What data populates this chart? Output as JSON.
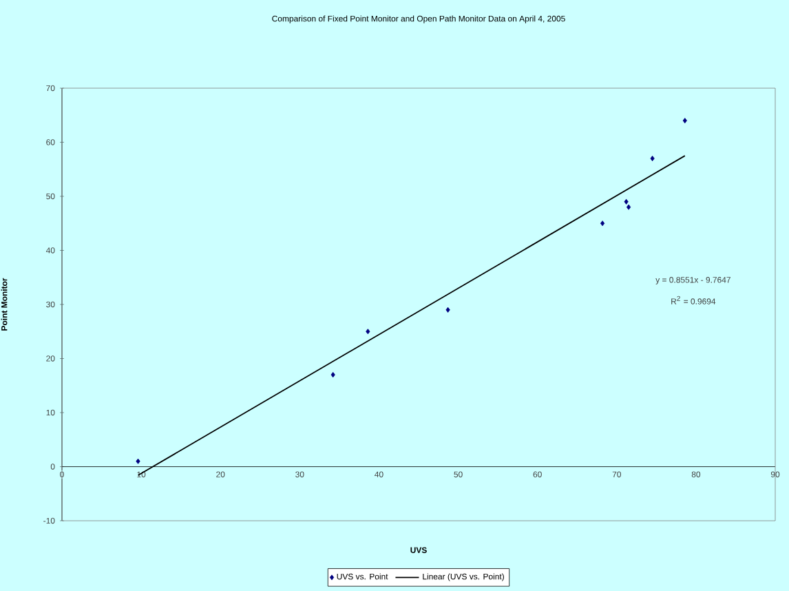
{
  "chart_data": {
    "type": "scatter",
    "title": "Comparison of Fixed Point Monitor and Open Path Monitor Data on April 4, 2005",
    "xlabel": "UVS",
    "ylabel": "Point Monitor",
    "xlim": [
      0,
      90
    ],
    "ylim": [
      -10,
      70
    ],
    "xticks": [
      0,
      10,
      20,
      30,
      40,
      50,
      60,
      70,
      80,
      90
    ],
    "yticks": [
      -10,
      0,
      10,
      20,
      30,
      40,
      50,
      60,
      70
    ],
    "legend": "bottom",
    "annotations": [
      "y = 0.8551x - 9.7647",
      "R$^{2}$ = 0.9694"
    ],
    "series": [
      {
        "name": "UVS vs. Point",
        "color": "#000080",
        "marker": "diamond",
        "x": [
          9.6,
          34.2,
          38.6,
          48.7,
          68.2,
          71.2,
          71.5,
          74.5,
          78.6
        ],
        "values": [
          1,
          17,
          25,
          29,
          45,
          49,
          48,
          57,
          64
        ]
      },
      {
        "name": "Linear (UVS vs. Point)",
        "type": "line",
        "color": "#000000",
        "x": [
          9.6,
          78.6
        ],
        "values": [
          -1.6,
          57.5
        ]
      }
    ]
  }
}
